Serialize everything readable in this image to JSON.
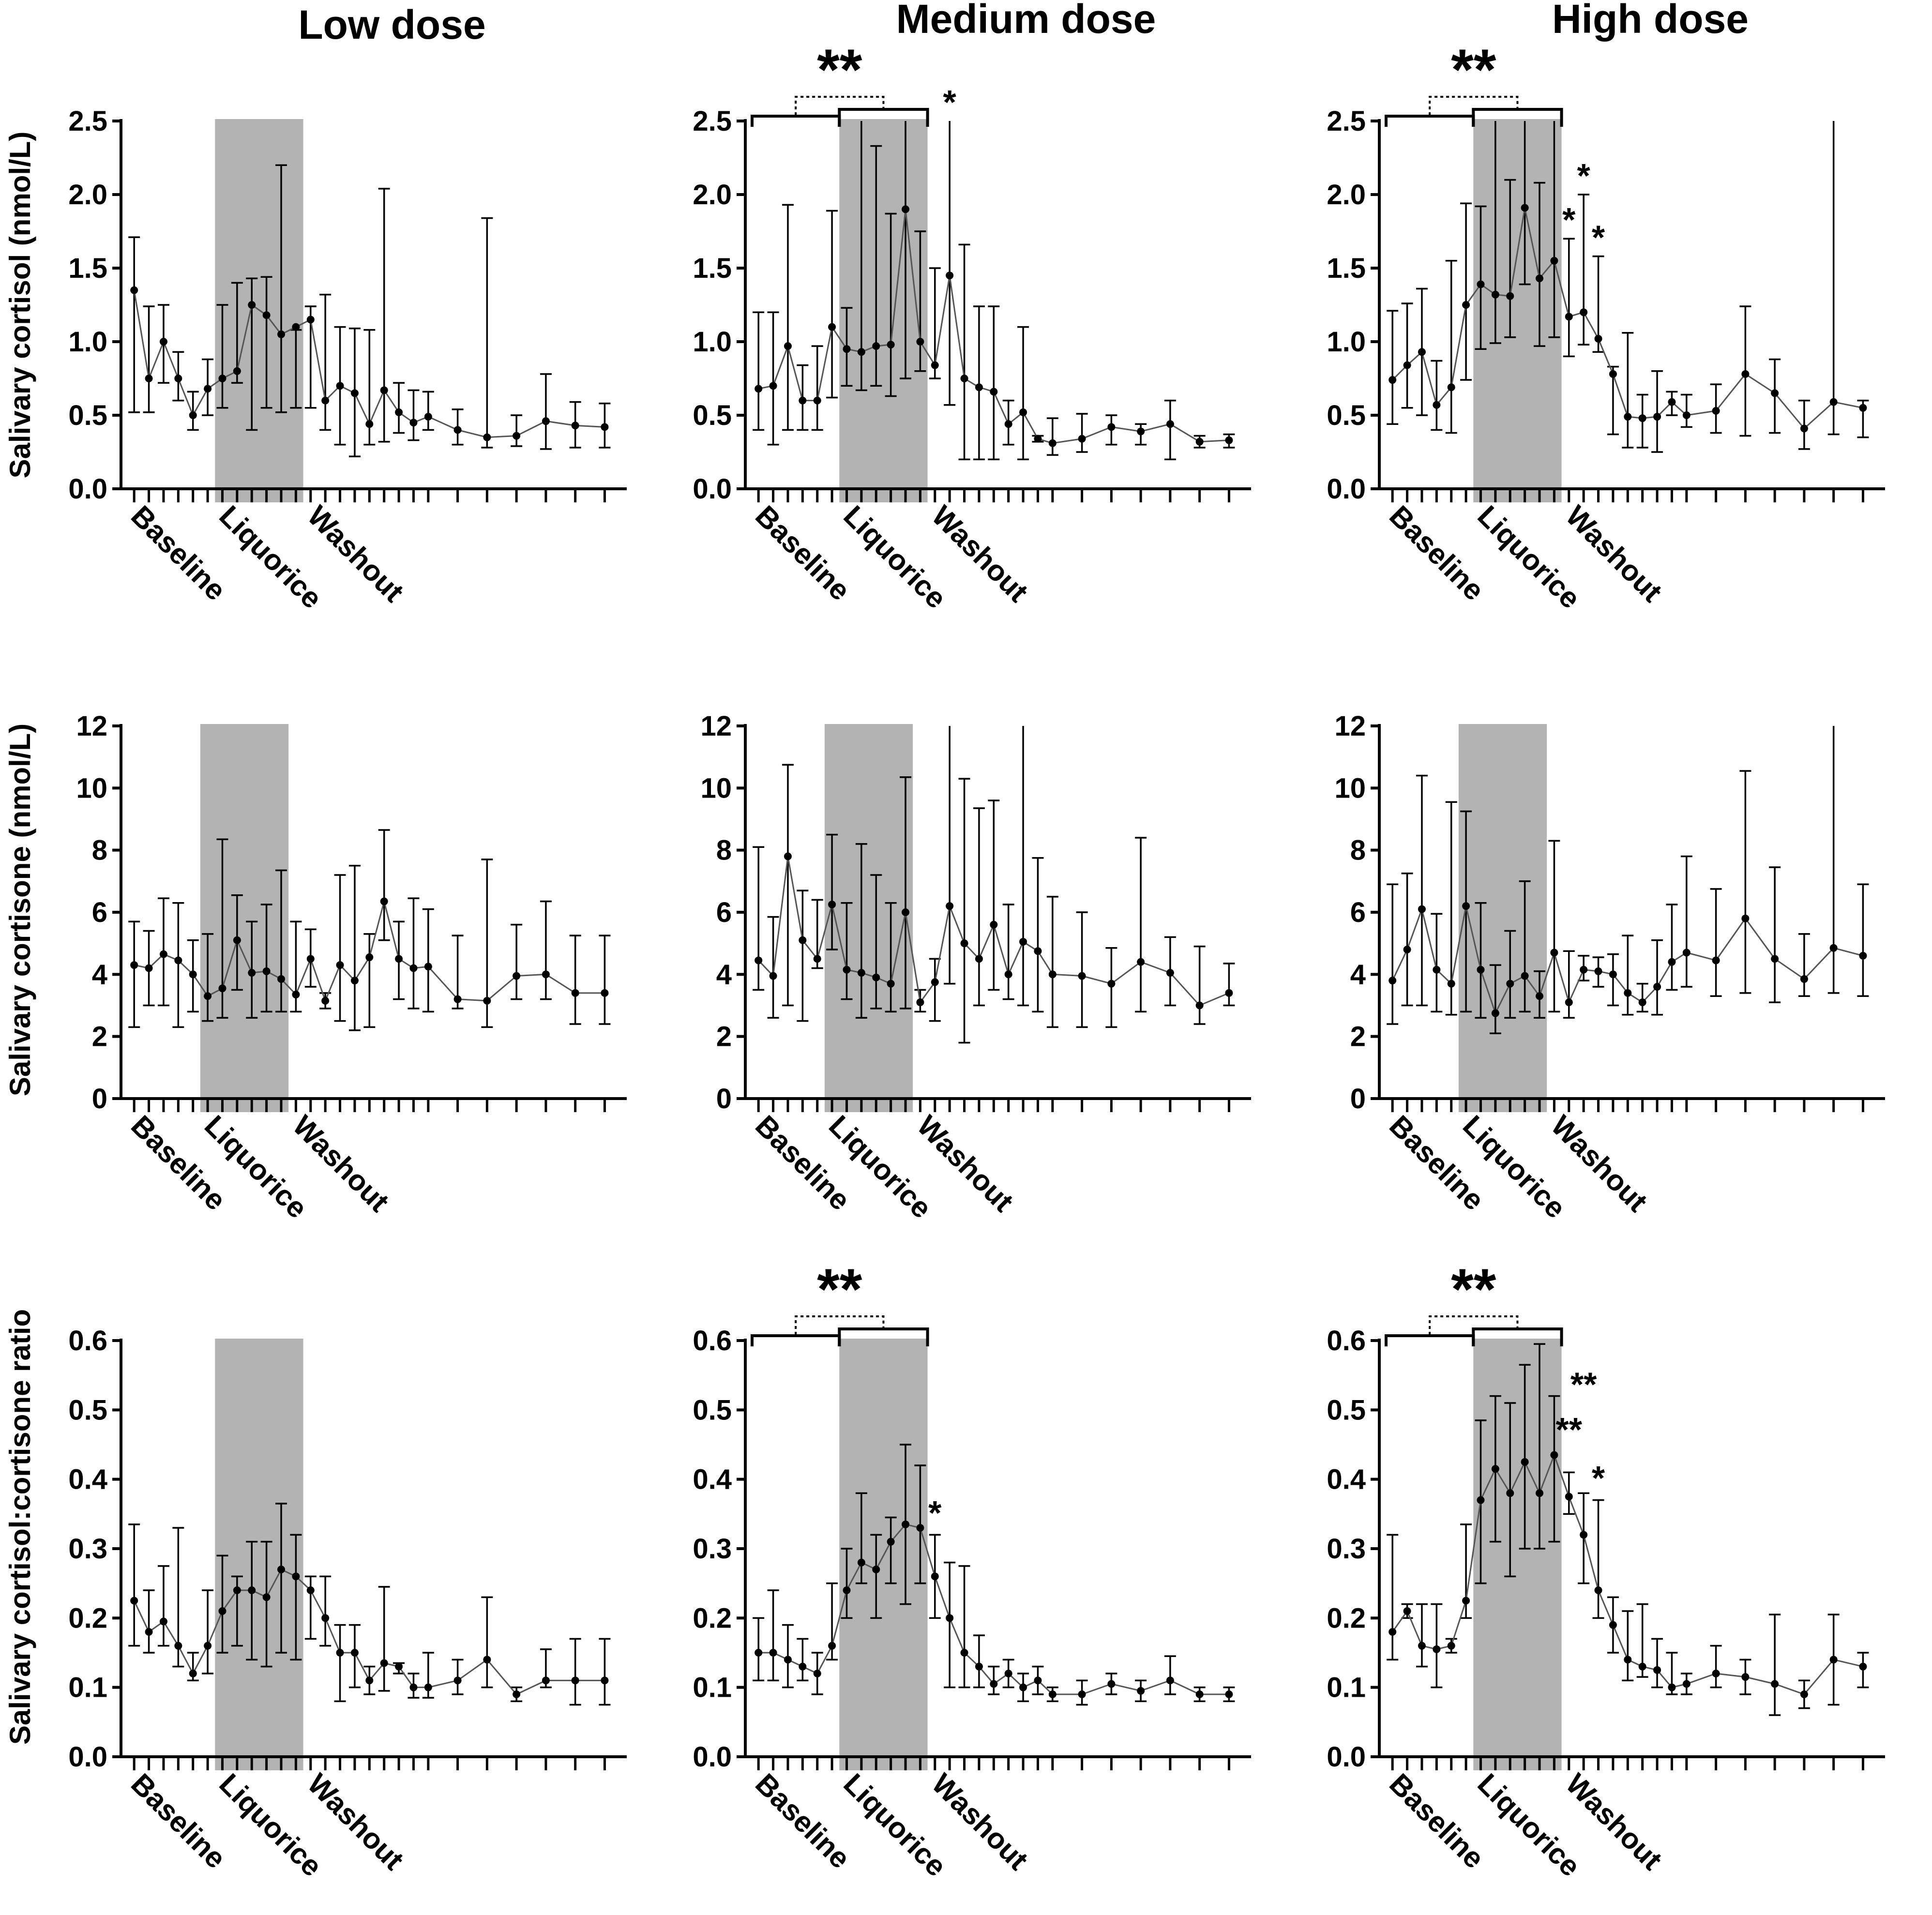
{
  "column_titles": [
    "Low dose",
    "Medium dose",
    "High dose"
  ],
  "row_ylabels": [
    "Salivary cortisol (nmol/L)",
    "Salivary cortisone (nmol/L)",
    "Salivary cortisol:cortisone ratio"
  ],
  "phase_labels": [
    "Baseline",
    "Liquorice",
    "Washout"
  ],
  "colors": {
    "shade": "#b3b3b3",
    "line": "#555555",
    "point": "#000000",
    "axis": "#000000"
  },
  "chart_data": [
    {
      "type": "line",
      "row": 0,
      "col": 0,
      "title": "Low dose",
      "ylabel": "Salivary cortisol (nmol/L)",
      "ylim": [
        0,
        2.5
      ],
      "yticks": [
        "0.0",
        "0.5",
        "1.0",
        "1.5",
        "2.0",
        "2.5"
      ],
      "categories": [
        "Baseline",
        "Liquorice",
        "Washout"
      ],
      "x": [
        0,
        1,
        2,
        3,
        4,
        5,
        6,
        7,
        8,
        9,
        10,
        11,
        12,
        13,
        14,
        15,
        16,
        17,
        18,
        19,
        20,
        22,
        24,
        26,
        28,
        30,
        32
      ],
      "y": [
        1.35,
        0.75,
        1.0,
        0.75,
        0.5,
        0.68,
        0.75,
        0.8,
        1.25,
        1.18,
        1.05,
        1.1,
        1.15,
        0.6,
        0.7,
        0.65,
        0.44,
        0.67,
        0.52,
        0.45,
        0.49,
        0.4,
        0.35,
        0.36,
        0.46,
        0.43,
        0.42
      ],
      "err_low": [
        0.52,
        0.52,
        0.72,
        0.6,
        0.4,
        0.5,
        0.55,
        0.72,
        0.4,
        0.55,
        0.52,
        0.55,
        0.55,
        0.4,
        0.3,
        0.22,
        0.3,
        0.32,
        0.38,
        0.33,
        0.4,
        0.3,
        0.28,
        0.29,
        0.27,
        0.28,
        0.28
      ],
      "err_high": [
        1.71,
        1.24,
        1.25,
        0.93,
        0.66,
        0.88,
        1.25,
        1.4,
        1.43,
        1.44,
        2.2,
        1.08,
        1.24,
        1.32,
        1.1,
        1.09,
        1.08,
        2.04,
        0.72,
        0.67,
        0.66,
        0.54,
        1.84,
        0.5,
        0.78,
        0.59,
        0.58
      ],
      "shaded_range": [
        5.5,
        11.5
      ],
      "xlim": [
        -0.5,
        33.5
      ],
      "significance": []
    },
    {
      "type": "line",
      "row": 0,
      "col": 1,
      "title": "Medium dose",
      "ylabel": "Salivary cortisol (nmol/L)",
      "ylim": [
        0,
        2.5
      ],
      "yticks": [
        "0.0",
        "0.5",
        "1.0",
        "1.5",
        "2.0",
        "2.5"
      ],
      "categories": [
        "Baseline",
        "Liquorice",
        "Washout"
      ],
      "x": [
        0,
        1,
        2,
        3,
        4,
        5,
        6,
        7,
        8,
        9,
        10,
        11,
        12,
        13,
        14,
        15,
        16,
        17,
        18,
        19,
        20,
        22,
        24,
        26,
        28,
        30,
        32
      ],
      "y": [
        0.68,
        0.7,
        0.97,
        0.6,
        0.6,
        1.1,
        0.95,
        0.93,
        0.97,
        0.98,
        1.9,
        1.0,
        0.84,
        1.45,
        0.75,
        0.69,
        0.66,
        0.44,
        0.52,
        0.34,
        0.31,
        0.34,
        0.42,
        0.39,
        0.44,
        0.32,
        0.33
      ],
      "err_low": [
        0.4,
        0.3,
        0.4,
        0.4,
        0.4,
        0.62,
        0.7,
        0.67,
        0.7,
        0.63,
        0.75,
        0.8,
        0.75,
        0.57,
        0.2,
        0.2,
        0.2,
        0.3,
        0.2,
        0.32,
        0.23,
        0.25,
        0.3,
        0.3,
        0.2,
        0.28,
        0.28
      ],
      "err_high": [
        1.2,
        1.2,
        1.93,
        0.84,
        0.97,
        1.89,
        1.23,
        2.5,
        2.33,
        1.87,
        2.5,
        1.75,
        1.5,
        2.5,
        1.66,
        1.24,
        1.24,
        0.6,
        1.1,
        0.36,
        0.48,
        0.51,
        0.5,
        0.44,
        0.6,
        0.36,
        0.37
      ],
      "shaded_range": [
        5.5,
        11.5
      ],
      "xlim": [
        -0.5,
        33.5
      ],
      "significance": [
        {
          "label": "**",
          "kind": "bracket"
        },
        {
          "label": "*",
          "at": 13,
          "y": 2.55
        }
      ]
    },
    {
      "type": "line",
      "row": 0,
      "col": 2,
      "title": "High dose",
      "ylabel": "Salivary cortisol (nmol/L)",
      "ylim": [
        0,
        2.5
      ],
      "yticks": [
        "0.0",
        "0.5",
        "1.0",
        "1.5",
        "2.0",
        "2.5"
      ],
      "categories": [
        "Baseline",
        "Liquorice",
        "Washout"
      ],
      "x": [
        0,
        1,
        2,
        3,
        4,
        5,
        6,
        7,
        8,
        9,
        10,
        11,
        12,
        13,
        14,
        15,
        16,
        17,
        18,
        19,
        20,
        22,
        24,
        26,
        28,
        30,
        32
      ],
      "y": [
        0.74,
        0.84,
        0.93,
        0.57,
        0.69,
        1.25,
        1.39,
        1.32,
        1.31,
        1.91,
        1.43,
        1.55,
        1.17,
        1.2,
        1.02,
        0.78,
        0.49,
        0.48,
        0.49,
        0.59,
        0.5,
        0.53,
        0.78,
        0.65,
        0.41,
        0.59,
        0.55
      ],
      "err_low": [
        0.44,
        0.55,
        0.5,
        0.4,
        0.38,
        0.74,
        0.95,
        0.99,
        1.03,
        1.39,
        0.97,
        1.03,
        0.9,
        0.98,
        0.93,
        0.37,
        0.28,
        0.28,
        0.25,
        0.5,
        0.42,
        0.38,
        0.36,
        0.38,
        0.27,
        0.37,
        0.35
      ],
      "err_high": [
        1.21,
        1.26,
        1.36,
        0.87,
        1.55,
        1.94,
        1.92,
        2.5,
        2.1,
        2.5,
        2.08,
        2.5,
        1.7,
        2.0,
        1.58,
        0.83,
        1.06,
        0.64,
        0.8,
        0.66,
        0.64,
        0.71,
        1.24,
        0.88,
        0.6,
        2.5,
        0.6
      ],
      "shaded_range": [
        5.5,
        11.5
      ],
      "xlim": [
        -0.5,
        33.5
      ],
      "significance": [
        {
          "label": "**",
          "kind": "bracket"
        },
        {
          "label": "*",
          "at": 12,
          "y": 1.75
        },
        {
          "label": "*",
          "at": 13,
          "y": 2.05
        },
        {
          "label": "*",
          "at": 14,
          "y": 1.63
        }
      ]
    },
    {
      "type": "line",
      "row": 1,
      "col": 0,
      "title": "Low dose",
      "ylabel": "Salivary cortisone (nmol/L)",
      "ylim": [
        0,
        12
      ],
      "yticks": [
        "0",
        "2",
        "4",
        "6",
        "8",
        "10",
        "12"
      ],
      "categories": [
        "Baseline",
        "Liquorice",
        "Washout"
      ],
      "x": [
        0,
        1,
        2,
        3,
        4,
        5,
        6,
        7,
        8,
        9,
        10,
        11,
        12,
        13,
        14,
        15,
        16,
        17,
        18,
        19,
        20,
        22,
        24,
        26,
        28,
        30,
        32
      ],
      "y": [
        4.3,
        4.2,
        4.65,
        4.45,
        4.0,
        3.3,
        3.55,
        5.1,
        4.05,
        4.1,
        3.85,
        3.35,
        4.5,
        3.15,
        4.3,
        3.8,
        4.55,
        6.35,
        4.5,
        4.2,
        4.25,
        3.2,
        3.15,
        3.95,
        4.0,
        3.4,
        3.4
      ],
      "err_low": [
        2.3,
        3.0,
        3.0,
        2.3,
        2.8,
        2.5,
        2.6,
        3.5,
        2.6,
        2.8,
        2.8,
        2.8,
        3.6,
        2.9,
        2.5,
        2.2,
        2.3,
        5.1,
        3.2,
        2.9,
        2.8,
        2.9,
        2.3,
        3.2,
        3.2,
        2.4,
        2.4
      ],
      "err_high": [
        5.7,
        5.4,
        6.45,
        6.3,
        5.1,
        5.3,
        8.35,
        6.55,
        5.7,
        6.25,
        7.35,
        5.7,
        5.45,
        3.4,
        7.2,
        7.5,
        5.3,
        8.65,
        5.7,
        6.45,
        6.1,
        5.25,
        7.7,
        5.6,
        6.35,
        5.25,
        5.25
      ],
      "shaded_range": [
        4.5,
        10.5
      ],
      "xlim": [
        -0.5,
        33.5
      ],
      "significance": []
    },
    {
      "type": "line",
      "row": 1,
      "col": 1,
      "title": "Medium dose",
      "ylabel": "Salivary cortisone (nmol/L)",
      "ylim": [
        0,
        12
      ],
      "yticks": [
        "0",
        "2",
        "4",
        "6",
        "8",
        "10",
        "12"
      ],
      "categories": [
        "Baseline",
        "Liquorice",
        "Washout"
      ],
      "x": [
        0,
        1,
        2,
        3,
        4,
        5,
        6,
        7,
        8,
        9,
        10,
        11,
        12,
        13,
        14,
        15,
        16,
        17,
        18,
        19,
        20,
        22,
        24,
        26,
        28,
        30,
        32
      ],
      "y": [
        4.45,
        3.95,
        7.8,
        5.1,
        4.5,
        6.25,
        4.15,
        4.05,
        3.9,
        3.7,
        6.0,
        3.1,
        3.75,
        6.2,
        5.0,
        4.5,
        5.6,
        4.0,
        5.05,
        4.75,
        4.0,
        3.95,
        3.7,
        4.4,
        4.05,
        3.0,
        3.4
      ],
      "err_low": [
        3.5,
        2.6,
        3.0,
        2.5,
        4.2,
        4.8,
        3.2,
        2.6,
        2.9,
        2.8,
        2.9,
        2.8,
        2.5,
        3.7,
        1.8,
        3.0,
        3.5,
        3.2,
        3.0,
        2.8,
        2.3,
        2.3,
        2.3,
        2.8,
        3.0,
        2.4,
        3.0
      ],
      "err_high": [
        8.1,
        5.85,
        10.75,
        6.7,
        6.4,
        8.5,
        6.3,
        8.2,
        7.2,
        6.3,
        10.35,
        3.5,
        4.5,
        12,
        10.3,
        9.35,
        9.6,
        6.25,
        12,
        7.75,
        6.5,
        6.0,
        4.85,
        8.4,
        5.2,
        4.9,
        4.35
      ],
      "shaded_range": [
        4.5,
        10.5
      ],
      "xlim": [
        -0.5,
        33.5
      ],
      "significance": []
    },
    {
      "type": "line",
      "row": 1,
      "col": 2,
      "title": "High dose",
      "ylabel": "Salivary cortisone (nmol/L)",
      "ylim": [
        0,
        12
      ],
      "yticks": [
        "0",
        "2",
        "4",
        "6",
        "8",
        "10",
        "12"
      ],
      "categories": [
        "Baseline",
        "Liquorice",
        "Washout"
      ],
      "x": [
        0,
        1,
        2,
        3,
        4,
        5,
        6,
        7,
        8,
        9,
        10,
        11,
        12,
        13,
        14,
        15,
        16,
        17,
        18,
        19,
        20,
        22,
        24,
        26,
        28,
        30,
        32
      ],
      "y": [
        3.8,
        4.8,
        6.1,
        4.15,
        3.7,
        6.2,
        4.15,
        2.75,
        3.7,
        3.95,
        3.3,
        4.7,
        3.1,
        4.15,
        4.1,
        4.0,
        3.4,
        3.1,
        3.6,
        4.4,
        4.7,
        4.45,
        5.8,
        4.5,
        3.85,
        4.85,
        4.6
      ],
      "err_low": [
        2.4,
        3.0,
        3.0,
        2.8,
        2.7,
        2.8,
        2.6,
        2.1,
        2.6,
        2.8,
        2.6,
        2.8,
        2.6,
        3.8,
        3.6,
        3.0,
        2.7,
        2.8,
        2.7,
        3.5,
        3.6,
        3.3,
        3.4,
        3.1,
        3.3,
        3.4,
        3.3
      ],
      "err_high": [
        6.9,
        7.25,
        10.4,
        5.95,
        9.55,
        9.25,
        6.3,
        4.3,
        5.4,
        7.0,
        4.1,
        8.3,
        4.75,
        4.6,
        4.55,
        4.65,
        5.25,
        3.7,
        5.1,
        6.25,
        7.8,
        6.75,
        10.55,
        7.45,
        5.3,
        12,
        6.9
      ],
      "shaded_range": [
        4.5,
        10.5
      ],
      "xlim": [
        -0.5,
        33.5
      ],
      "significance": []
    },
    {
      "type": "line",
      "row": 2,
      "col": 0,
      "title": "Low dose",
      "ylabel": "Salivary cortisol:cortisone ratio",
      "ylim": [
        0,
        0.6
      ],
      "yticks": [
        "0.0",
        "0.1",
        "0.2",
        "0.3",
        "0.4",
        "0.5",
        "0.6"
      ],
      "categories": [
        "Baseline",
        "Liquorice",
        "Washout"
      ],
      "x": [
        0,
        1,
        2,
        3,
        4,
        5,
        6,
        7,
        8,
        9,
        10,
        11,
        12,
        13,
        14,
        15,
        16,
        17,
        18,
        19,
        20,
        22,
        24,
        26,
        28,
        30,
        32
      ],
      "y": [
        0.225,
        0.18,
        0.195,
        0.16,
        0.12,
        0.16,
        0.21,
        0.24,
        0.24,
        0.23,
        0.27,
        0.26,
        0.24,
        0.2,
        0.15,
        0.15,
        0.11,
        0.135,
        0.13,
        0.1,
        0.1,
        0.11,
        0.14,
        0.09,
        0.11,
        0.11,
        0.11
      ],
      "err_low": [
        0.16,
        0.15,
        0.16,
        0.13,
        0.11,
        0.12,
        0.15,
        0.16,
        0.14,
        0.13,
        0.15,
        0.14,
        0.17,
        0.16,
        0.08,
        0.1,
        0.09,
        0.095,
        0.12,
        0.085,
        0.085,
        0.09,
        0.1,
        0.08,
        0.1,
        0.075,
        0.075
      ],
      "err_high": [
        0.335,
        0.24,
        0.275,
        0.33,
        0.15,
        0.24,
        0.29,
        0.26,
        0.31,
        0.31,
        0.365,
        0.32,
        0.26,
        0.26,
        0.19,
        0.19,
        0.13,
        0.245,
        0.135,
        0.12,
        0.15,
        0.14,
        0.23,
        0.1,
        0.155,
        0.17,
        0.17
      ],
      "shaded_range": [
        5.5,
        11.5
      ],
      "xlim": [
        -0.5,
        33.5
      ],
      "significance": []
    },
    {
      "type": "line",
      "row": 2,
      "col": 1,
      "title": "Medium dose",
      "ylabel": "Salivary cortisol:cortisone ratio",
      "ylim": [
        0,
        0.6
      ],
      "yticks": [
        "0.0",
        "0.1",
        "0.2",
        "0.3",
        "0.4",
        "0.5",
        "0.6"
      ],
      "categories": [
        "Baseline",
        "Liquorice",
        "Washout"
      ],
      "x": [
        0,
        1,
        2,
        3,
        4,
        5,
        6,
        7,
        8,
        9,
        10,
        11,
        12,
        13,
        14,
        15,
        16,
        17,
        18,
        19,
        20,
        22,
        24,
        26,
        28,
        30,
        32
      ],
      "y": [
        0.15,
        0.15,
        0.14,
        0.13,
        0.12,
        0.16,
        0.24,
        0.28,
        0.27,
        0.31,
        0.335,
        0.33,
        0.26,
        0.2,
        0.15,
        0.13,
        0.105,
        0.12,
        0.1,
        0.11,
        0.09,
        0.09,
        0.105,
        0.095,
        0.11,
        0.09,
        0.09
      ],
      "err_low": [
        0.11,
        0.11,
        0.1,
        0.11,
        0.09,
        0.14,
        0.2,
        0.25,
        0.2,
        0.25,
        0.22,
        0.25,
        0.2,
        0.1,
        0.1,
        0.1,
        0.09,
        0.1,
        0.08,
        0.09,
        0.08,
        0.075,
        0.09,
        0.08,
        0.09,
        0.08,
        0.08
      ],
      "err_high": [
        0.2,
        0.24,
        0.19,
        0.17,
        0.15,
        0.25,
        0.3,
        0.38,
        0.32,
        0.345,
        0.45,
        0.42,
        0.32,
        0.28,
        0.275,
        0.175,
        0.13,
        0.14,
        0.12,
        0.13,
        0.1,
        0.11,
        0.12,
        0.11,
        0.145,
        0.1,
        0.1
      ],
      "shaded_range": [
        5.5,
        11.5
      ],
      "xlim": [
        -0.5,
        33.5
      ],
      "significance": [
        {
          "label": "**",
          "kind": "bracket"
        },
        {
          "label": "*",
          "at": 12,
          "y": 0.335
        }
      ]
    },
    {
      "type": "line",
      "row": 2,
      "col": 2,
      "title": "High dose",
      "ylabel": "Salivary cortisol:cortisone ratio",
      "ylim": [
        0,
        0.6
      ],
      "yticks": [
        "0.0",
        "0.1",
        "0.2",
        "0.3",
        "0.4",
        "0.5",
        "0.6"
      ],
      "categories": [
        "Baseline",
        "Liquorice",
        "Washout"
      ],
      "x": [
        0,
        1,
        2,
        3,
        4,
        5,
        6,
        7,
        8,
        9,
        10,
        11,
        12,
        13,
        14,
        15,
        16,
        17,
        18,
        19,
        20,
        22,
        24,
        26,
        28,
        30,
        32
      ],
      "y": [
        0.18,
        0.21,
        0.16,
        0.155,
        0.16,
        0.225,
        0.37,
        0.415,
        0.38,
        0.425,
        0.38,
        0.435,
        0.375,
        0.32,
        0.24,
        0.19,
        0.14,
        0.13,
        0.125,
        0.1,
        0.105,
        0.12,
        0.115,
        0.105,
        0.09,
        0.14,
        0.13
      ],
      "err_low": [
        0.14,
        0.2,
        0.13,
        0.1,
        0.15,
        0.2,
        0.25,
        0.31,
        0.26,
        0.3,
        0.3,
        0.31,
        0.35,
        0.25,
        0.2,
        0.15,
        0.11,
        0.115,
        0.1,
        0.09,
        0.09,
        0.1,
        0.09,
        0.06,
        0.07,
        0.075,
        0.1
      ],
      "err_high": [
        0.32,
        0.22,
        0.22,
        0.22,
        0.17,
        0.335,
        0.485,
        0.52,
        0.51,
        0.565,
        0.595,
        0.52,
        0.41,
        0.38,
        0.37,
        0.23,
        0.21,
        0.22,
        0.17,
        0.15,
        0.12,
        0.16,
        0.14,
        0.205,
        0.11,
        0.205,
        0.15
      ],
      "shaded_range": [
        5.5,
        11.5
      ],
      "xlim": [
        -0.5,
        33.5
      ],
      "significance": [
        {
          "label": "**",
          "kind": "bracket"
        },
        {
          "label": "**",
          "at": 12,
          "y": 0.455
        },
        {
          "label": "**",
          "at": 13,
          "y": 0.52
        },
        {
          "label": "*",
          "at": 14,
          "y": 0.385
        }
      ]
    }
  ]
}
